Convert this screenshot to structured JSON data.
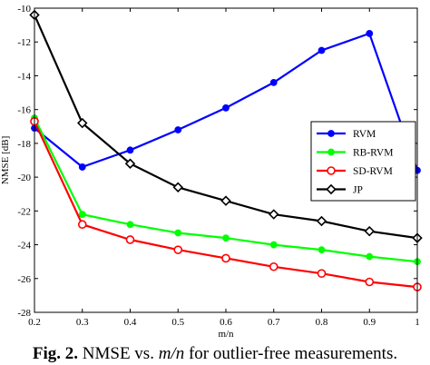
{
  "chart_data": {
    "type": "line",
    "title": "",
    "xlabel": "m/n",
    "ylabel": "NMSE [dB]",
    "xlim": [
      0.2,
      1.0
    ],
    "ylim": [
      -28,
      -10
    ],
    "x_ticks": [
      "0.2",
      "0.3",
      "0.4",
      "0.5",
      "0.6",
      "0.7",
      "0.8",
      "0.9",
      "1"
    ],
    "y_ticks": [
      "-10",
      "-12",
      "-14",
      "-16",
      "-18",
      "-20",
      "-22",
      "-24",
      "-26",
      "-28"
    ],
    "grid": false,
    "legend_position": "right",
    "x": [
      0.2,
      0.3,
      0.4,
      0.5,
      0.6,
      0.7,
      0.8,
      0.9,
      1.0
    ],
    "series": [
      {
        "name": "RVM",
        "color": "#0000ff",
        "marker": "filled-circle",
        "values": [
          -17.1,
          -19.4,
          -18.4,
          -17.2,
          -15.9,
          -14.4,
          -12.5,
          -11.5,
          -19.6
        ]
      },
      {
        "name": "RB-RVM",
        "color": "#00ff00",
        "marker": "filled-circle",
        "values": [
          -16.5,
          -22.2,
          -22.8,
          -23.3,
          -23.6,
          -24.0,
          -24.3,
          -24.7,
          -25.0
        ]
      },
      {
        "name": "SD-RVM",
        "color": "#ff0000",
        "marker": "open-circle",
        "values": [
          -16.7,
          -22.8,
          -23.7,
          -24.3,
          -24.8,
          -25.3,
          -25.7,
          -26.2,
          -26.5
        ]
      },
      {
        "name": "JP",
        "color": "#000000",
        "marker": "open-diamond",
        "values": [
          -10.4,
          -16.8,
          -19.2,
          -20.6,
          -21.4,
          -22.2,
          -22.6,
          -23.2,
          -23.6
        ]
      }
    ]
  },
  "caption": {
    "fig_label": "Fig. 2.",
    "text_before": " NMSE vs. ",
    "m_over_n": "m/n",
    "text_after": " for outlier-free measurements."
  }
}
